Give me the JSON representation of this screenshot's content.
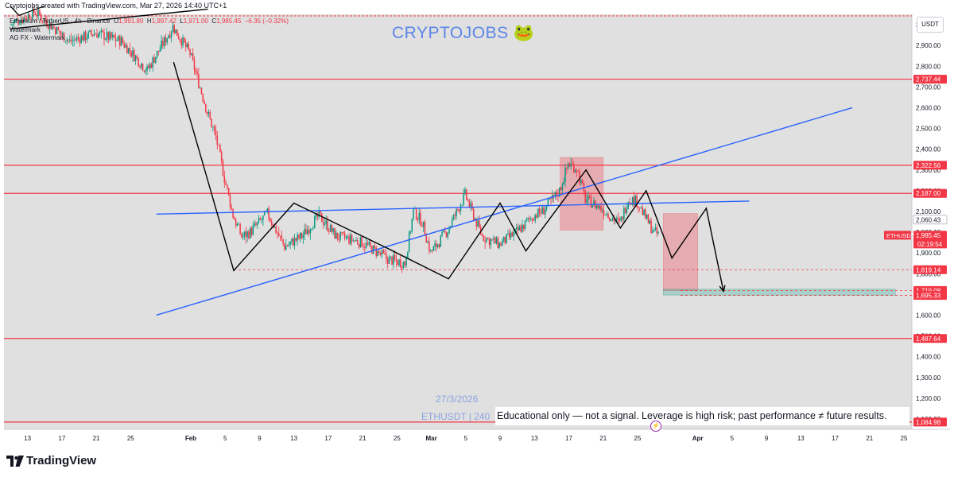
{
  "header": {
    "attribution": "Cryptojobs created with TradingView.com, Mar 27, 2026 14:40 UTC+1",
    "symbol_title": "Ethereum / TetherUS · 4h · Binance",
    "ohlc": {
      "o_label": "O",
      "o": "1,991.80",
      "h_label": "H",
      "h": "1,997.42",
      "l_label": "L",
      "l": "1,971.00",
      "c_label": "C",
      "c": "1,985.45",
      "change": "−6.35 (−0.32%)"
    },
    "watermark_1": "Watermark",
    "watermark_2": "AG FX - Watermark"
  },
  "brand_watermark": "CRYPTOJOBS 🐸",
  "bottom_watermark": {
    "date": "27/3/2026",
    "symbol": "ETHUSDT | 240"
  },
  "disclaimer": "Educational only — not a signal. Leverage is high risk; past performance ≠ future results.",
  "currency": "USDT",
  "footer": {
    "logo_text": "TradingView"
  },
  "colors": {
    "background": "#e0e0e0",
    "bull": "#089981",
    "bear": "#f23645",
    "channel": "#2962ff",
    "level": "#f23645",
    "stop_zone": "rgba(242,54,69,0.30)",
    "target_zone": "rgba(8,153,129,0.25)",
    "path": "#000000"
  },
  "chart_data": {
    "type": "candlestick",
    "symbol": "ETHUSDT",
    "timeframe": "4h",
    "exchange": "Binance",
    "ylim": [
      1050,
      3050
    ],
    "y_ticks": [
      1100,
      1200,
      1300,
      1400,
      1500,
      1600,
      1700,
      1800,
      1900,
      2000,
      2100,
      2200,
      2300,
      2400,
      2500,
      2600,
      2700,
      2800,
      2900,
      3000
    ],
    "y_tick_labels": [
      "1,100.00",
      "1,200.00",
      "1,300.00",
      "1,400.00",
      "1,500.00",
      "1,600.00",
      "1,700.00",
      "1,800.00",
      "1,900.00",
      "2,000.00",
      "2,100.00",
      "2,200.00",
      "2,300.00",
      "2,400.00",
      "2,500.00",
      "2,600.00",
      "2,700.00",
      "2,800.00",
      "2,900.00",
      "3,000.00"
    ],
    "x_range": [
      "2026-01-11",
      "2026-04-25"
    ],
    "x_ticks": [
      {
        "date": "2026-01-13",
        "label": "13",
        "bold": false
      },
      {
        "date": "2026-01-17",
        "label": "17",
        "bold": false
      },
      {
        "date": "2026-01-21",
        "label": "21",
        "bold": false
      },
      {
        "date": "2026-01-25",
        "label": "25",
        "bold": false
      },
      {
        "date": "2026-02-01",
        "label": "Feb",
        "bold": true
      },
      {
        "date": "2026-02-05",
        "label": "5",
        "bold": false
      },
      {
        "date": "2026-02-09",
        "label": "9",
        "bold": false
      },
      {
        "date": "2026-02-13",
        "label": "13",
        "bold": false
      },
      {
        "date": "2026-02-17",
        "label": "17",
        "bold": false
      },
      {
        "date": "2026-02-21",
        "label": "21",
        "bold": false
      },
      {
        "date": "2026-02-25",
        "label": "25",
        "bold": false
      },
      {
        "date": "2026-03-01",
        "label": "Mar",
        "bold": true
      },
      {
        "date": "2026-03-05",
        "label": "5",
        "bold": false
      },
      {
        "date": "2026-03-09",
        "label": "9",
        "bold": false
      },
      {
        "date": "2026-03-13",
        "label": "13",
        "bold": false
      },
      {
        "date": "2026-03-17",
        "label": "17",
        "bold": false
      },
      {
        "date": "2026-03-21",
        "label": "21",
        "bold": false
      },
      {
        "date": "2026-03-25",
        "label": "25",
        "bold": false
      },
      {
        "date": "2026-04-01",
        "label": "Apr",
        "bold": true
      },
      {
        "date": "2026-04-05",
        "label": "5",
        "bold": false
      },
      {
        "date": "2026-04-09",
        "label": "9",
        "bold": false
      },
      {
        "date": "2026-04-13",
        "label": "13",
        "bold": false
      },
      {
        "date": "2026-04-17",
        "label": "17",
        "bold": false
      },
      {
        "date": "2026-04-21",
        "label": "21",
        "bold": false
      },
      {
        "date": "2026-04-25",
        "label": "25",
        "bold": false
      }
    ],
    "price_anchors": [
      [
        "2026-01-11",
        3000
      ],
      [
        "2026-01-14",
        3060
      ],
      [
        "2026-01-18",
        2920
      ],
      [
        "2026-01-21",
        2960
      ],
      [
        "2026-01-24",
        2920
      ],
      [
        "2026-01-27",
        2780
      ],
      [
        "2026-01-29",
        2920
      ],
      [
        "2026-01-30",
        2990
      ],
      [
        "2026-02-01",
        2860
      ],
      [
        "2026-02-02",
        2720
      ],
      [
        "2026-02-03",
        2580
      ],
      [
        "2026-02-04",
        2460
      ],
      [
        "2026-02-05",
        2260
      ],
      [
        "2026-02-06",
        2080
      ],
      [
        "2026-02-07",
        1980
      ],
      [
        "2026-02-08",
        2000
      ],
      [
        "2026-02-10",
        2090
      ],
      [
        "2026-02-12",
        1930
      ],
      [
        "2026-02-14",
        1980
      ],
      [
        "2026-02-16",
        2080
      ],
      [
        "2026-02-18",
        1980
      ],
      [
        "2026-02-21",
        1950
      ],
      [
        "2026-02-24",
        1870
      ],
      [
        "2026-02-26",
        1850
      ],
      [
        "2026-02-27",
        2100
      ],
      [
        "2026-02-28",
        2050
      ],
      [
        "2026-03-01",
        1900
      ],
      [
        "2026-03-03",
        2010
      ],
      [
        "2026-03-05",
        2180
      ],
      [
        "2026-03-07",
        1980
      ],
      [
        "2026-03-09",
        1940
      ],
      [
        "2026-03-11",
        2000
      ],
      [
        "2026-03-13",
        2080
      ],
      [
        "2026-03-14",
        2100
      ],
      [
        "2026-03-16",
        2200
      ],
      [
        "2026-03-17",
        2330
      ],
      [
        "2026-03-18",
        2310
      ],
      [
        "2026-03-19",
        2160
      ],
      [
        "2026-03-21",
        2110
      ],
      [
        "2026-03-23",
        2040
      ],
      [
        "2026-03-24",
        2160
      ],
      [
        "2026-03-25",
        2150
      ],
      [
        "2026-03-26",
        2070
      ],
      [
        "2026-03-27",
        2000
      ],
      [
        "2026-03-27 14:40",
        1985
      ]
    ],
    "last_candle": {
      "open": 1991.8,
      "high": 1997.42,
      "low": 1971.0,
      "close": 1985.45
    },
    "horizontal_levels": [
      2737.44,
      2322.56,
      2187.0,
      1487.64,
      1084.98
    ],
    "dashed_levels": [
      {
        "price": 1819.14,
        "from": "2026-02-06",
        "to": "2026-04-25"
      },
      {
        "price": 1719.08,
        "from": "2026-03-30",
        "to": "2026-04-25"
      },
      {
        "price": 1695.33,
        "from": "2026-03-30",
        "to": "2026-04-25"
      }
    ],
    "channel_lines": [
      {
        "points": [
          [
            "2026-01-28",
            1600
          ],
          [
            "2026-04-19",
            2600
          ]
        ]
      },
      {
        "points": [
          [
            "2026-01-28",
            2087
          ],
          [
            "2026-04-07",
            2150
          ]
        ]
      }
    ],
    "trend_line_top_left": {
      "points": [
        [
          "2026-01-11",
          2980
        ],
        [
          "2026-02-03",
          3075
        ]
      ]
    },
    "x_mark": {
      "points": [
        [
          "2026-01-11",
          3090
        ],
        [
          "2026-01-12",
          3045
        ],
        [
          "2026-01-15",
          3090
        ]
      ]
    },
    "zigzag_path": [
      [
        "2026-01-30",
        2820
      ],
      [
        "2026-02-06",
        1815
      ],
      [
        "2026-02-13",
        2140
      ],
      [
        "2026-02-24",
        1920
      ],
      [
        "2026-03-03",
        1775
      ],
      [
        "2026-03-09",
        2140
      ],
      [
        "2026-03-12",
        1910
      ],
      [
        "2026-03-19",
        2300
      ],
      [
        "2026-03-23",
        2020
      ],
      [
        "2026-03-26",
        2200
      ],
      [
        "2026-03-29",
        1875
      ],
      [
        "2026-04-02",
        2115
      ],
      [
        "2026-04-04",
        1715
      ]
    ],
    "stop_zones": [
      {
        "from": "2026-03-16",
        "to": "2026-03-21",
        "top": 2360,
        "bottom": 2010
      },
      {
        "from": "2026-03-28",
        "to": "2026-04-01",
        "top": 2090,
        "bottom": 1718
      }
    ],
    "target_zone": {
      "from": "2026-03-28",
      "to": "2026-04-24",
      "top": 1725,
      "bottom": 1697
    },
    "price_labels": [
      {
        "price": 2737.44,
        "text": "2,737.44",
        "style": "level"
      },
      {
        "price": 2322.56,
        "text": "2,322.56",
        "style": "level"
      },
      {
        "price": 2187.0,
        "text": "2,187.00",
        "style": "level"
      },
      {
        "price": 2060.43,
        "text": "2,060.43",
        "style": "neutral"
      },
      {
        "price": 1985.45,
        "text": "1,985.45",
        "style": "last",
        "sub": "02:19:54"
      },
      {
        "price": 1819.14,
        "text": "1,819.14",
        "style": "level"
      },
      {
        "price": 1719.08,
        "text": "1,719.08",
        "style": "level"
      },
      {
        "price": 1695.33,
        "text": "1,695.33",
        "style": "level"
      },
      {
        "price": 1487.64,
        "text": "1,487.64",
        "style": "level"
      },
      {
        "price": 1084.98,
        "text": "1,084.98",
        "style": "level"
      }
    ],
    "symbol_tag": "ETHUSDT"
  }
}
